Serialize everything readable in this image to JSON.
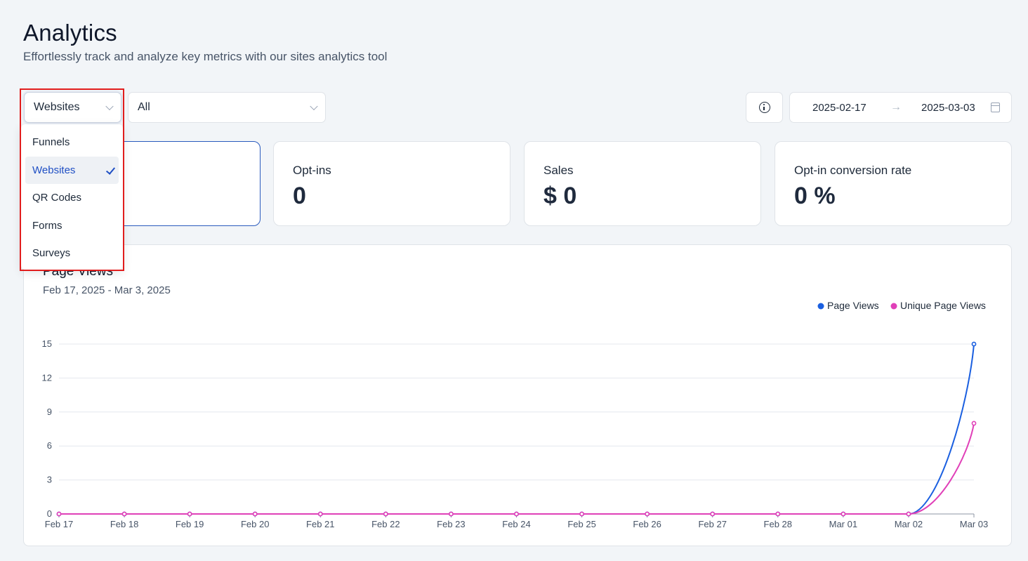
{
  "header": {
    "title": "Analytics",
    "subtitle": "Effortlessly track and analyze key metrics with our sites analytics tool"
  },
  "filters": {
    "type_select": {
      "value": "Websites"
    },
    "filter_select": {
      "value": "All"
    },
    "date_range": {
      "start": "2025-02-17",
      "end": "2025-03-03"
    },
    "icons": {
      "info": "info-icon",
      "calendar": "calendar-icon",
      "arrow": "arrow-right-icon",
      "dropdown": "chevron-down-icon"
    }
  },
  "dropdown": {
    "items": [
      {
        "label": "Funnels",
        "selected": false
      },
      {
        "label": "Websites",
        "selected": true
      },
      {
        "label": "QR Codes",
        "selected": false
      },
      {
        "label": "Forms",
        "selected": false
      },
      {
        "label": "Surveys",
        "selected": false
      }
    ]
  },
  "cards": [
    {
      "label": "",
      "value": ""
    },
    {
      "label": "Opt-ins",
      "value": "0"
    },
    {
      "label": "Sales",
      "value": "$ 0"
    },
    {
      "label": "Opt-in conversion rate",
      "value": "0 %"
    }
  ],
  "chart_panel": {
    "title": "Page Views",
    "subtitle": "Feb 17, 2025 - Mar 3, 2025"
  },
  "colors": {
    "accent": "#2a5bbd",
    "page_views": "#1a5fe0",
    "unique_page_views": "#e040b8",
    "highlight": "#e11d1d"
  },
  "chart_data": {
    "type": "line",
    "categories": [
      "Feb 17",
      "Feb 18",
      "Feb 19",
      "Feb 20",
      "Feb 21",
      "Feb 22",
      "Feb 23",
      "Feb 24",
      "Feb 25",
      "Feb 26",
      "Feb 27",
      "Feb 28",
      "Mar 01",
      "Mar 02",
      "Mar 03"
    ],
    "series": [
      {
        "name": "Page Views",
        "color": "#1a5fe0",
        "values": [
          0,
          0,
          0,
          0,
          0,
          0,
          0,
          0,
          0,
          0,
          0,
          0,
          0,
          0,
          15
        ]
      },
      {
        "name": "Unique Page Views",
        "color": "#e040b8",
        "values": [
          0,
          0,
          0,
          0,
          0,
          0,
          0,
          0,
          0,
          0,
          0,
          0,
          0,
          0,
          8
        ]
      }
    ],
    "yticks": [
      0,
      3,
      6,
      9,
      12,
      15
    ],
    "ylim": [
      0,
      15
    ],
    "grid": true,
    "legend": "top-right",
    "title": "Page Views",
    "xlabel": "",
    "ylabel": ""
  }
}
